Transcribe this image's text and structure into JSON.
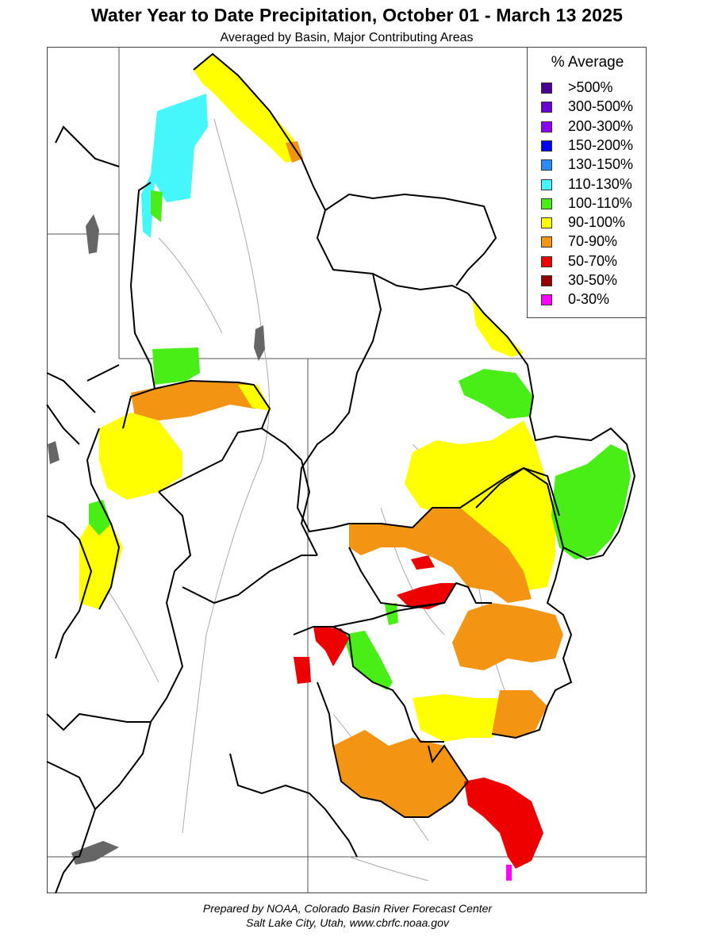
{
  "title": "Water Year to Date Precipitation, October 01  - March 13 2025",
  "subtitle": "Averaged by Basin, Major Contributing Areas",
  "legend": {
    "title": "% Average",
    "items": [
      {
        "label": ">500%",
        "color": "#4b0095"
      },
      {
        "label": "300-500%",
        "color": "#6a00d8"
      },
      {
        "label": "200-300%",
        "color": "#8e00ff"
      },
      {
        "label": "150-200%",
        "color": "#0000ff"
      },
      {
        "label": "130-150%",
        "color": "#2b8cff"
      },
      {
        "label": "110-130%",
        "color": "#45f6fa"
      },
      {
        "label": "100-110%",
        "color": "#48ee16"
      },
      {
        "label": "90-100%",
        "color": "#ffff00"
      },
      {
        "label": "70-90%",
        "color": "#f39412"
      },
      {
        "label": "50-70%",
        "color": "#ee0000"
      },
      {
        "label": "30-50%",
        "color": "#960000"
      },
      {
        "label": "0-30%",
        "color": "#ff00ff"
      }
    ]
  },
  "footer": {
    "line1": "Prepared by NOAA, Colorado Basin River Forecast Center",
    "line2": "Salt Lake City, Utah, www.cbrfc.noaa.gov"
  }
}
